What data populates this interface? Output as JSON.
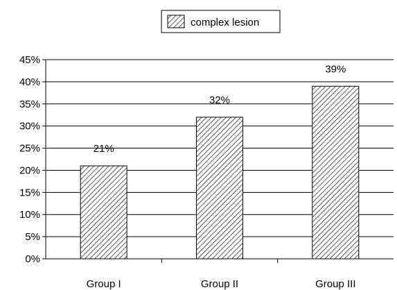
{
  "chart_data": {
    "type": "bar",
    "categories": [
      "Group I",
      "Group II",
      "Group III"
    ],
    "series": [
      {
        "name": "complex lesion",
        "values": [
          21,
          32,
          39
        ]
      }
    ],
    "data_labels": [
      "21%",
      "32%",
      "39%"
    ],
    "yticks": [
      "0%",
      "5%",
      "10%",
      "15%",
      "20%",
      "25%",
      "30%",
      "35%",
      "40%",
      "45%"
    ],
    "ylim": [
      0,
      45
    ],
    "grid": true,
    "legend_position": "top-center",
    "bar_fill": "diagonal-hatch",
    "colors": {
      "bar_stroke": "#000000",
      "grid": "#000000",
      "background": "#ffffff"
    }
  }
}
